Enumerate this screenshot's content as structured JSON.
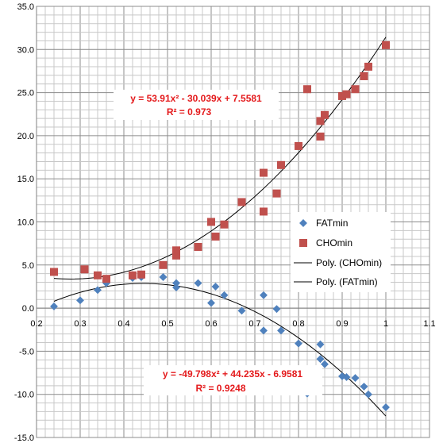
{
  "chart_data": {
    "type": "scatter",
    "xlim": [
      0.2,
      1.1
    ],
    "ylim": [
      -15.0,
      35.0
    ],
    "x_ticks": [
      "0.2",
      "0.3",
      "0.4",
      "0.5",
      "0.6",
      "0.7",
      "0.8",
      "0.9",
      "1",
      "1.1"
    ],
    "y_ticks": [
      "35.0",
      "30.0",
      "25.0",
      "20.0",
      "15.0",
      "10.0",
      "5.0",
      "0.0",
      "-5.0",
      "-10.0",
      "-15.0"
    ],
    "grid": true,
    "legend_position": "right",
    "series": [
      {
        "name": "FATmin",
        "marker": "diamond",
        "color": "#4f81bd",
        "points": [
          [
            0.24,
            0.2
          ],
          [
            0.3,
            0.9
          ],
          [
            0.34,
            2.1
          ],
          [
            0.36,
            2.9
          ],
          [
            0.42,
            3.5
          ],
          [
            0.44,
            3.6
          ],
          [
            0.49,
            3.6
          ],
          [
            0.52,
            2.9
          ],
          [
            0.52,
            2.4
          ],
          [
            0.57,
            2.9
          ],
          [
            0.6,
            0.6
          ],
          [
            0.61,
            2.5
          ],
          [
            0.63,
            1.5
          ],
          [
            0.67,
            -0.3
          ],
          [
            0.72,
            1.5
          ],
          [
            0.72,
            -2.6
          ],
          [
            0.75,
            -0.1
          ],
          [
            0.76,
            -2.6
          ],
          [
            0.8,
            -4.1
          ],
          [
            0.82,
            -9.9
          ],
          [
            0.85,
            -4.2
          ],
          [
            0.85,
            -5.9
          ],
          [
            0.86,
            -6.5
          ],
          [
            0.9,
            -7.9
          ],
          [
            0.91,
            -8.0
          ],
          [
            0.93,
            -8.1
          ],
          [
            0.95,
            -9.1
          ],
          [
            0.96,
            -10.0
          ],
          [
            1.0,
            -11.5
          ]
        ]
      },
      {
        "name": "CHOmin",
        "marker": "square",
        "color": "#c0504d",
        "points": [
          [
            0.24,
            4.2
          ],
          [
            0.31,
            4.5
          ],
          [
            0.34,
            3.8
          ],
          [
            0.36,
            3.4
          ],
          [
            0.42,
            3.8
          ],
          [
            0.44,
            3.9
          ],
          [
            0.49,
            5.0
          ],
          [
            0.52,
            6.1
          ],
          [
            0.52,
            6.7
          ],
          [
            0.57,
            7.1
          ],
          [
            0.6,
            10.0
          ],
          [
            0.61,
            8.3
          ],
          [
            0.63,
            9.7
          ],
          [
            0.67,
            12.3
          ],
          [
            0.72,
            11.2
          ],
          [
            0.72,
            15.7
          ],
          [
            0.75,
            13.3
          ],
          [
            0.76,
            16.6
          ],
          [
            0.8,
            18.8
          ],
          [
            0.82,
            25.4
          ],
          [
            0.85,
            19.9
          ],
          [
            0.85,
            21.7
          ],
          [
            0.86,
            22.4
          ],
          [
            0.9,
            24.6
          ],
          [
            0.91,
            24.8
          ],
          [
            0.93,
            25.4
          ],
          [
            0.95,
            26.9
          ],
          [
            0.96,
            28.0
          ],
          [
            1.0,
            30.5
          ]
        ]
      },
      {
        "name": "Poly. (CHOmin)",
        "type": "trendline",
        "color": "#000000",
        "coefficients": [
          53.91,
          -30.039,
          7.5581
        ],
        "x_range": [
          0.24,
          1.0
        ]
      },
      {
        "name": "Poly. (FATmin)",
        "type": "trendline",
        "color": "#000000",
        "coefficients": [
          -49.798,
          44.235,
          -6.9581
        ],
        "x_range": [
          0.24,
          1.0
        ]
      }
    ],
    "annotations": [
      {
        "id": "cho-eq",
        "line1": "y = 53.91x² - 30.039x + 7.5581",
        "line2": "R² = 0.973"
      },
      {
        "id": "fat-eq",
        "line1": "y = -49.798x² + 44.235x - 6.9581",
        "line2": "R² = 0.9248"
      }
    ]
  }
}
